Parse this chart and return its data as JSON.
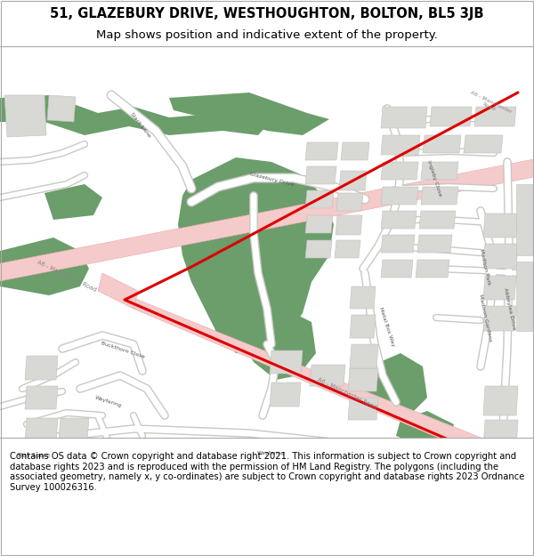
{
  "title_line1": "51, GLAZEBURY DRIVE, WESTHOUGHTON, BOLTON, BL5 3JB",
  "title_line2": "Map shows position and indicative extent of the property.",
  "copyright_text": "Contains OS data © Crown copyright and database right 2021. This information is subject to Crown copyright and database rights 2023 and is reproduced with the permission of HM Land Registry. The polygons (including the associated geometry, namely x, y co-ordinates) are subject to Crown copyright and database rights 2023 Ordnance Survey 100026316.",
  "map_bg": "#f2f1ef",
  "road_pink": "#f5caca",
  "road_pink_edge": "#e8a8a8",
  "green_color": "#6b9e6b",
  "building_fill": "#d8d8d5",
  "building_edge": "#c0c0bc",
  "road_white": "#ffffff",
  "road_edge": "#c8c8c4",
  "red_line": "#dd0000",
  "title_bg": "#ffffff",
  "footer_bg": "#ffffff",
  "title_fs": 10.5,
  "subtitle_fs": 9.5,
  "footer_fs": 7.2,
  "label_fs": 5.0,
  "label_color": "#555555"
}
